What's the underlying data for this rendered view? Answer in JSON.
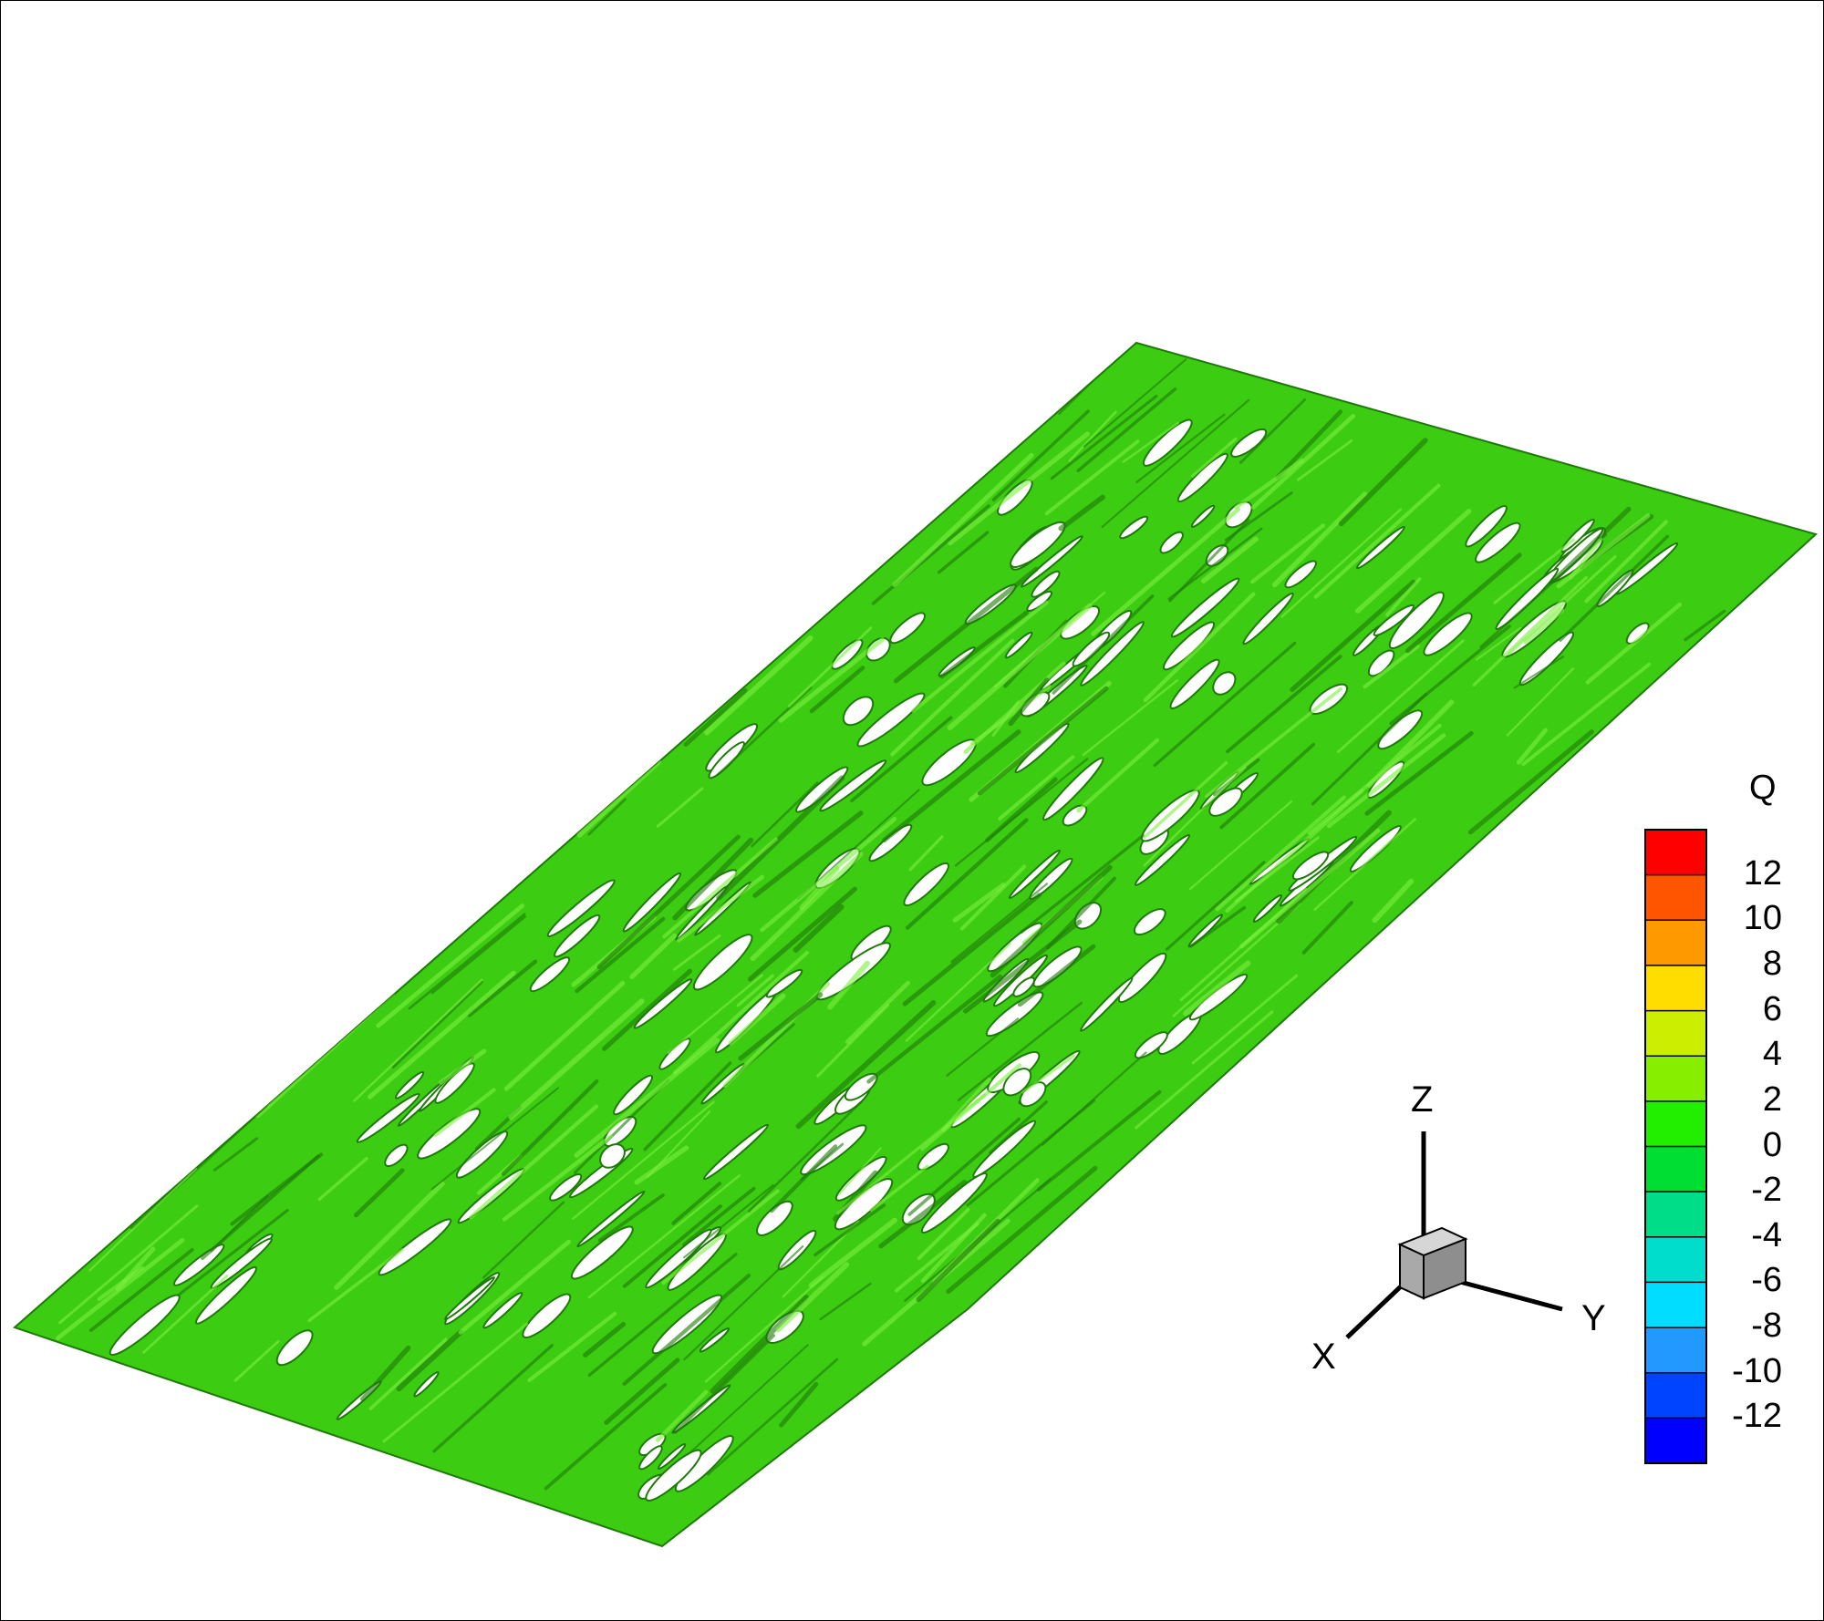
{
  "legend": {
    "title": "Q",
    "levels": [
      "12",
      "10",
      "8",
      "6",
      "4",
      "2",
      "0",
      "-2",
      "-4",
      "-6",
      "-8",
      "-10",
      "-12"
    ],
    "colors": [
      "#ff0000",
      "#ff5500",
      "#ff9900",
      "#ffdd00",
      "#ccee00",
      "#88ee00",
      "#22ee00",
      "#00dd33",
      "#00dd88",
      "#00ddcc",
      "#00ddff",
      "#2299ff",
      "#0044ff",
      "#0000ff"
    ]
  },
  "axes": {
    "z_label": "Z",
    "y_label": "Y",
    "x_label": "X"
  },
  "colors": {
    "isosurface": "#3ccc12",
    "isosurface_highlight": "#7cf040",
    "isosurface_dark": "#1e7a08",
    "background": "#ffffff",
    "cube": "#a9a9a9"
  }
}
